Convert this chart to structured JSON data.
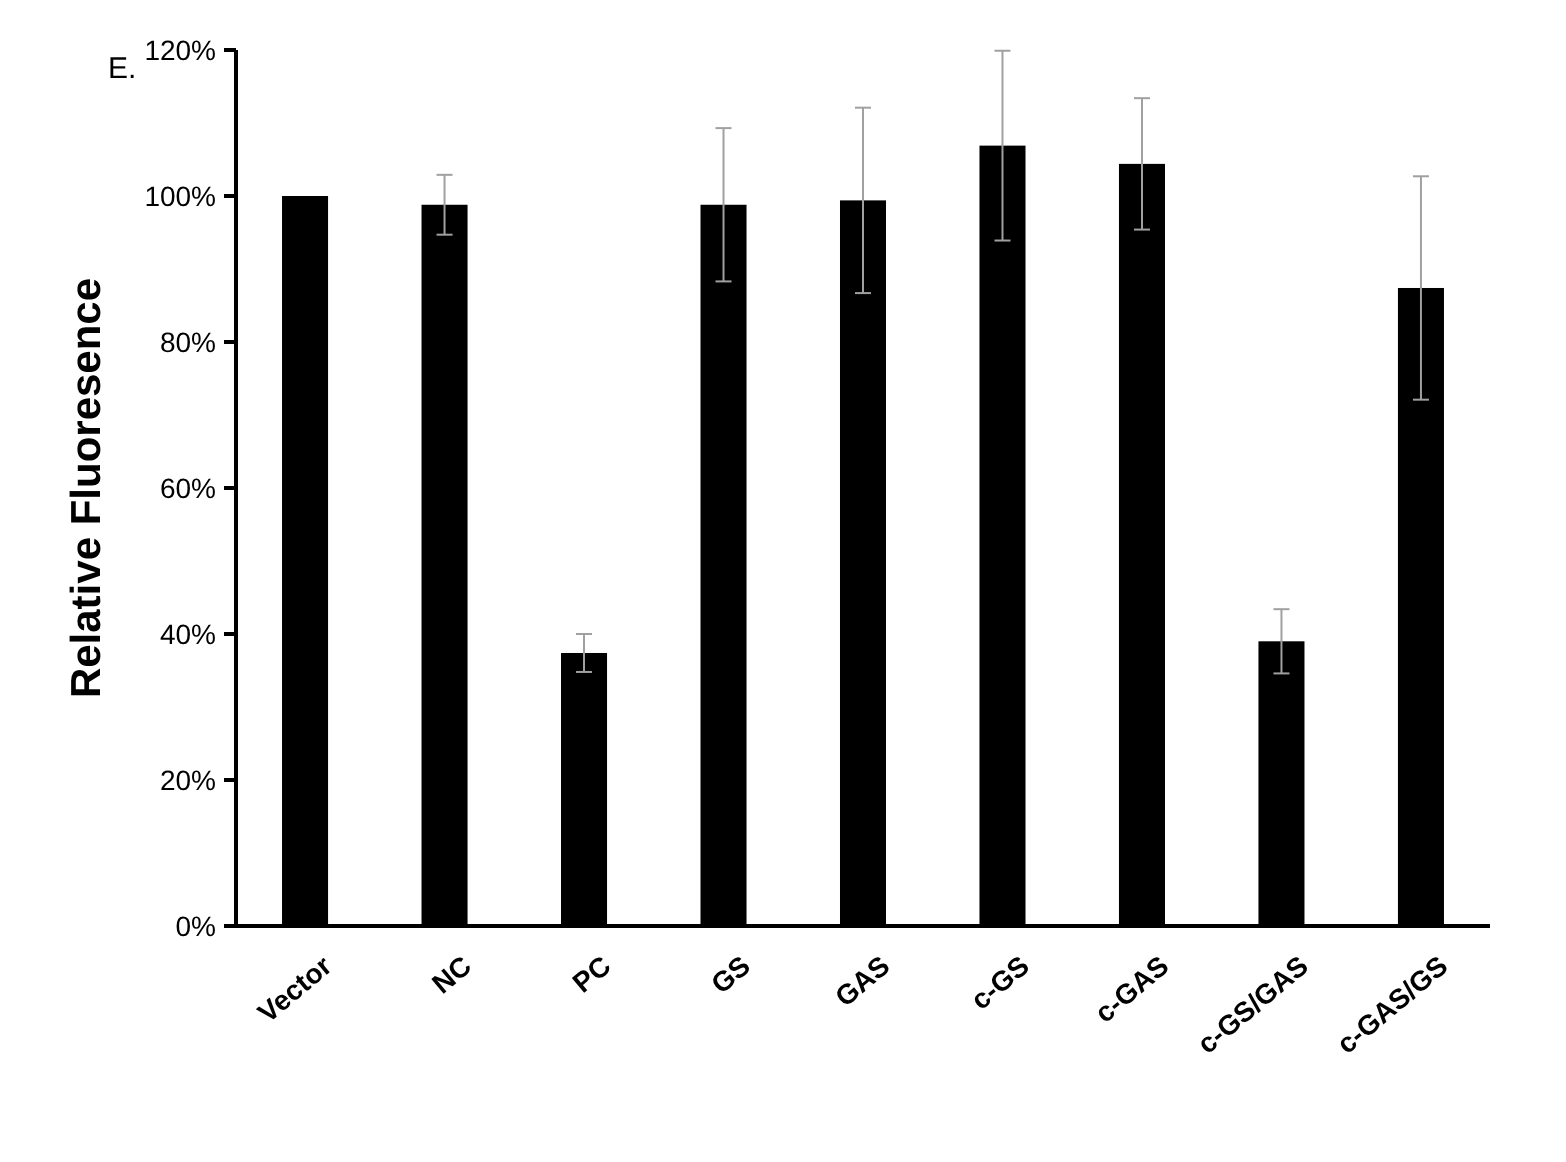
{
  "chart_data": {
    "type": "bar",
    "ylabel": "Relative Fluoresence",
    "categories": [
      "Vector",
      "NC",
      "PC",
      "GS",
      "GAS",
      "c-GS",
      "c-GAS",
      "c-GS/GAS",
      "c-GAS/GS"
    ],
    "values": [
      100,
      98.8,
      37.4,
      98.8,
      99.4,
      106.9,
      104.4,
      39.0,
      87.4
    ],
    "errors": [
      null,
      4.1,
      2.6,
      10.5,
      12.7,
      13,
      9,
      4.4,
      15.3
    ],
    "color": "#000000",
    "ylim": [
      0,
      120
    ],
    "yticks": [
      {
        "value": 0,
        "label": "0%"
      },
      {
        "value": 20,
        "label": "20%"
      },
      {
        "value": 40,
        "label": "40%"
      },
      {
        "value": 60,
        "label": "60%"
      },
      {
        "value": 80,
        "label": "80%"
      },
      {
        "value": 100,
        "label": "100%"
      },
      {
        "value": 120,
        "label": "120%"
      }
    ],
    "annotations": [
      "E."
    ],
    "grid": false
  }
}
